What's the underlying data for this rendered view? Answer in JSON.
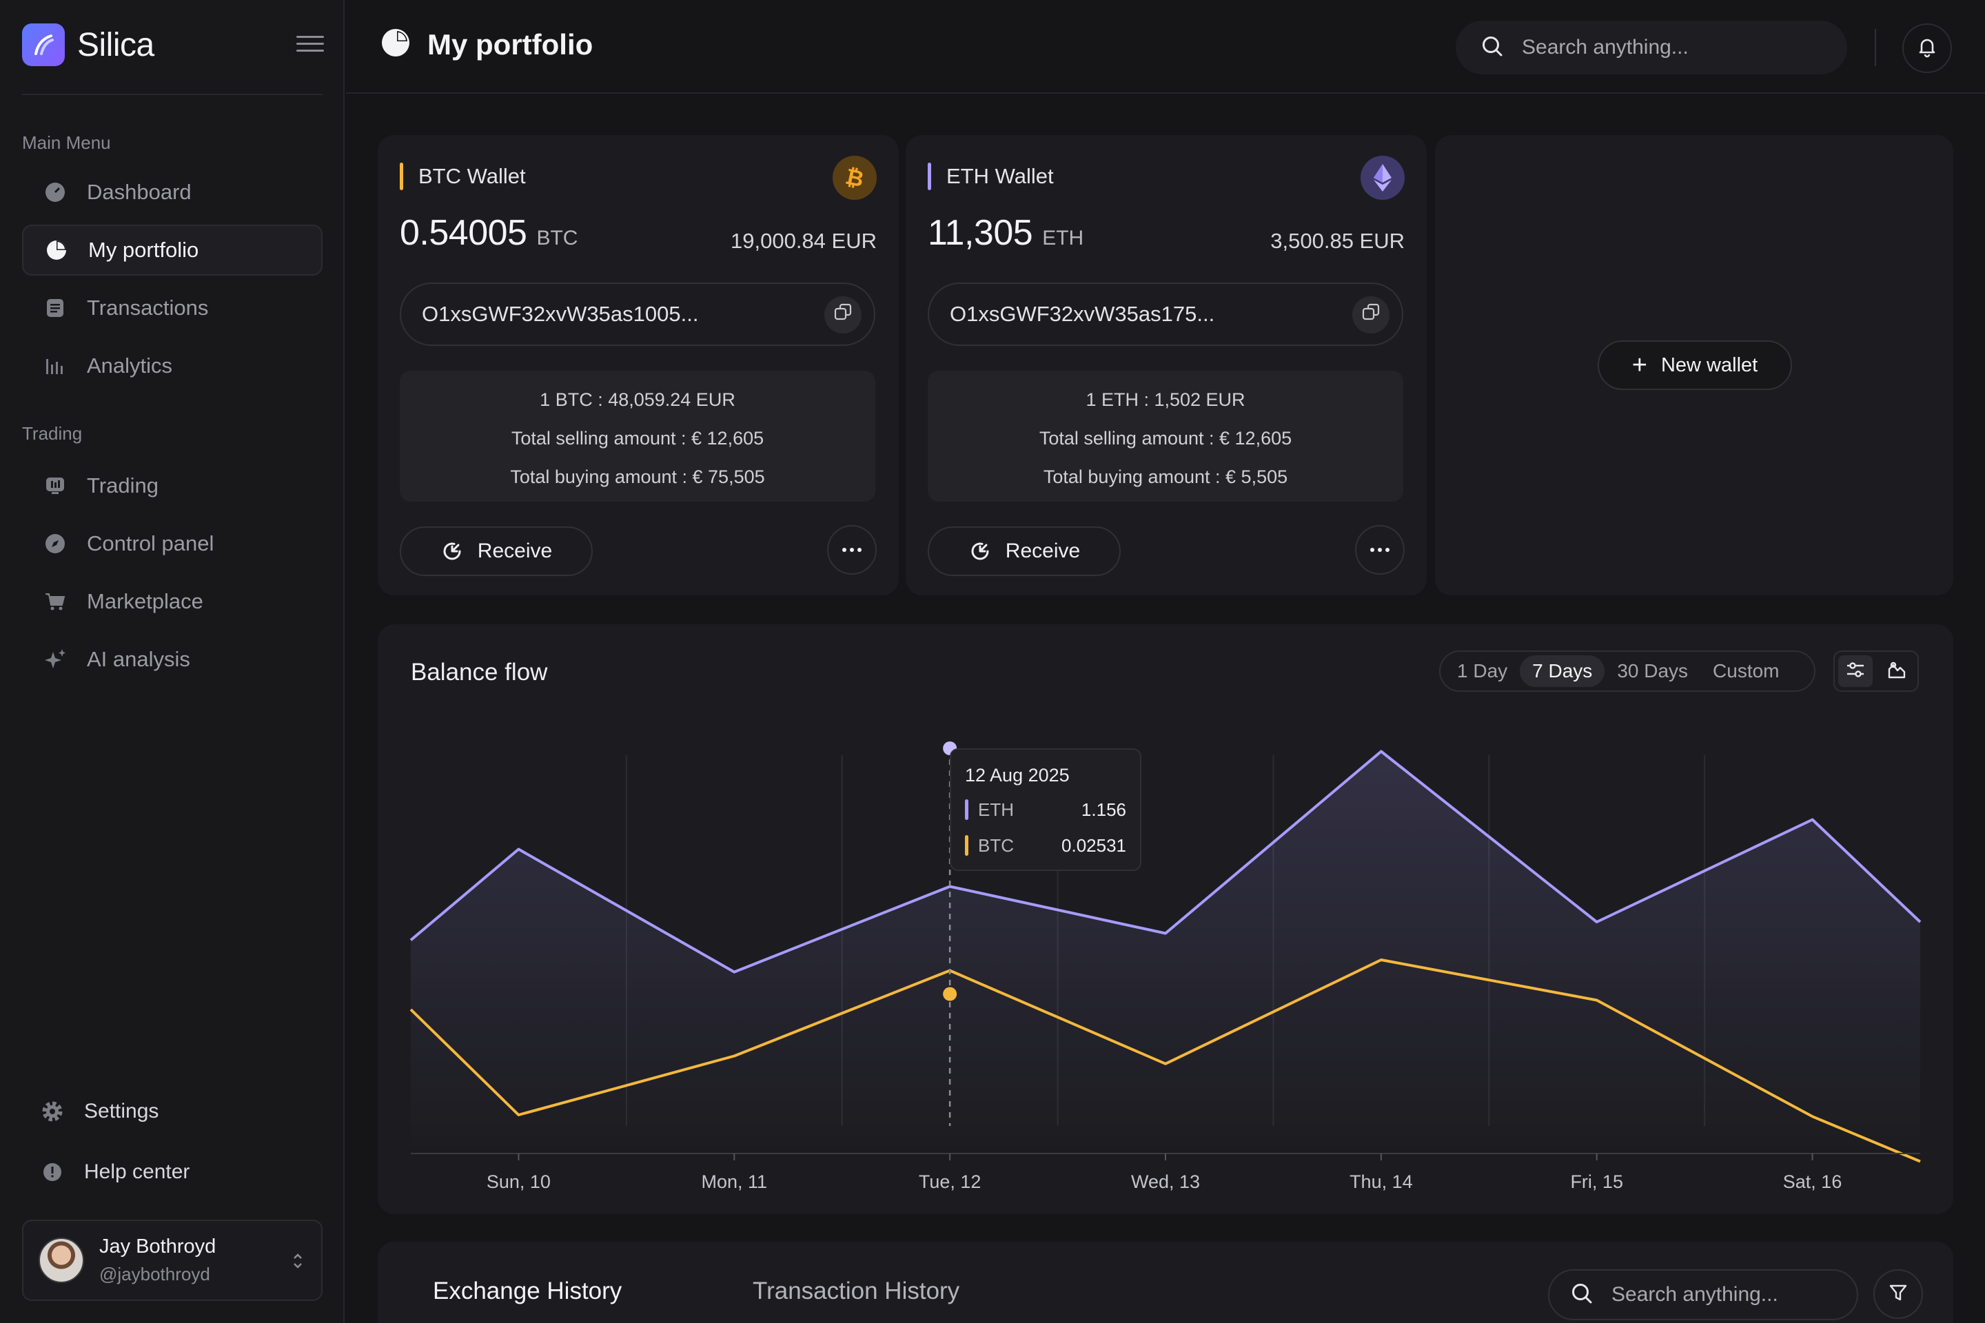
{
  "app": {
    "name": "Silica"
  },
  "sidebar": {
    "main_menu_label": "Main Menu",
    "main_items": [
      {
        "label": "Dashboard",
        "icon": "dashboard-icon"
      },
      {
        "label": "My portfolio",
        "icon": "pie-chart-icon",
        "active": true
      },
      {
        "label": "Transactions",
        "icon": "receipt-icon"
      },
      {
        "label": "Analytics",
        "icon": "bar-chart-icon"
      }
    ],
    "trading_label": "Trading",
    "trading_items": [
      {
        "label": "Trading",
        "icon": "trading-icon"
      },
      {
        "label": "Control panel",
        "icon": "compass-icon"
      },
      {
        "label": "Marketplace",
        "icon": "cart-icon"
      },
      {
        "label": "AI analysis",
        "icon": "sparkle-icon"
      }
    ],
    "settings_label": "Settings",
    "help_label": "Help center",
    "user": {
      "name": "Jay Bothroyd",
      "handle": "@jaybothroyd"
    }
  },
  "header": {
    "title": "My portfolio",
    "search_placeholder": "Search anything..."
  },
  "wallets": [
    {
      "title": "BTC Wallet",
      "amount": "0.54005",
      "unit": "BTC",
      "fiat": "19,000.84 EUR",
      "address": "O1xsGWF32xvW35as1005...",
      "rate": "1 BTC : 48,059.24 EUR",
      "selling": "Total selling amount : € 12,605",
      "buying": "Total buying amount : € 75,505",
      "receive_label": "Receive",
      "accent": "#f5b83d"
    },
    {
      "title": "ETH Wallet",
      "amount": "11,305",
      "unit": "ETH",
      "fiat": "3,500.85 EUR",
      "address": "O1xsGWF32xvW35as175...",
      "rate": "1 ETH : 1,502 EUR",
      "selling": "Total selling amount : € 12,605",
      "buying": "Total buying amount : € 5,505",
      "receive_label": "Receive",
      "accent": "#a99bff"
    }
  ],
  "new_wallet_label": "New wallet",
  "balance_flow": {
    "title": "Balance flow",
    "ranges": [
      "1 Day",
      "7 Days",
      "30 Days",
      "Custom"
    ],
    "active_range": "7 Days",
    "tooltip": {
      "date": "12 Aug 2025",
      "rows": [
        {
          "name": "ETH",
          "value": "1.156",
          "color": "#a99bff"
        },
        {
          "name": "BTC",
          "value": "0.02531",
          "color": "#f5b83d"
        }
      ]
    }
  },
  "chart_data": {
    "type": "area",
    "categories": [
      "Sun, 10",
      "Mon, 11",
      "Tue, 12",
      "Wed, 13",
      "Thu, 14",
      "Fri, 15",
      "Sat, 16"
    ],
    "x": [
      9.5,
      10,
      11,
      12,
      13,
      14,
      15,
      16,
      16.5
    ],
    "series": [
      {
        "name": "ETH",
        "color": "#a99bff",
        "values": [
          0.92,
          1.32,
          0.78,
          1.156,
          0.95,
          1.75,
          1.0,
          1.45,
          1.0
        ]
      },
      {
        "name": "BTC",
        "color": "#f5b83d",
        "values": [
          0.0228,
          0.016,
          0.0198,
          0.02531,
          0.0193,
          0.026,
          0.0234,
          0.0159,
          0.013
        ]
      }
    ],
    "title": "Balance flow",
    "grid": true,
    "legend": "none"
  },
  "history": {
    "tabs": [
      "Exchange History",
      "Transaction History"
    ],
    "active_tab": "Exchange History",
    "search_placeholder": "Search anything..."
  }
}
